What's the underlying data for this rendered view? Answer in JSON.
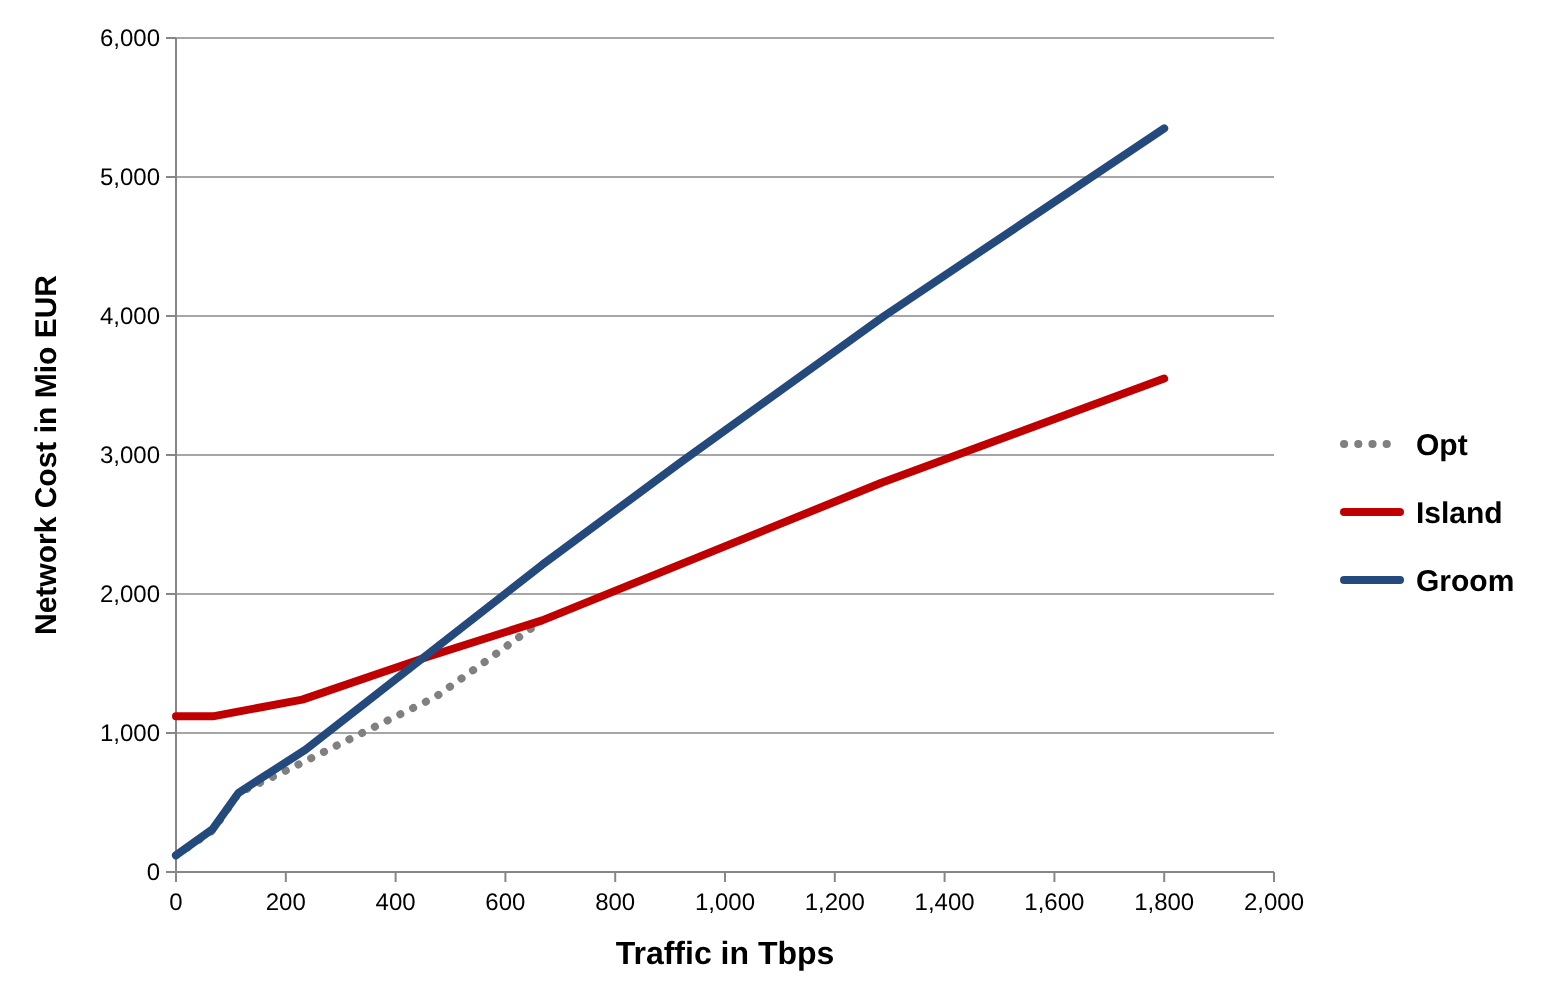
{
  "chart_data": {
    "type": "line",
    "xlabel": "Traffic in Tbps",
    "ylabel": "Network Cost in Mio EUR",
    "xlim": [
      0,
      2000
    ],
    "ylim": [
      0,
      6000
    ],
    "xticks": [
      0,
      200,
      400,
      600,
      800,
      {
        "value": 1000,
        "label": "1,000"
      },
      {
        "value": 1200,
        "label": "1,200"
      },
      {
        "value": 1400,
        "label": "1,400"
      },
      {
        "value": 1600,
        "label": "1,600"
      },
      {
        "value": 1800,
        "label": "1,800"
      },
      {
        "value": 2000,
        "label": "2,000"
      }
    ],
    "yticks": [
      0,
      {
        "value": 1000,
        "label": "1,000"
      },
      {
        "value": 2000,
        "label": "2,000"
      },
      {
        "value": 3000,
        "label": "3,000"
      },
      {
        "value": 4000,
        "label": "4,000"
      },
      {
        "value": 5000,
        "label": "5,000"
      },
      {
        "value": 6000,
        "label": "6,000"
      }
    ],
    "grid": "y",
    "legend": "right",
    "series": [
      {
        "name": "Opt",
        "color": "#808080",
        "line_style": "dotted",
        "x": [
          0,
          67,
          114,
          206,
          339,
          473,
          569,
          660
        ],
        "values": [
          120,
          300,
          570,
          740,
          1000,
          1260,
          1530,
          1790
        ]
      },
      {
        "name": "Island",
        "color": "#c00000",
        "line_style": "solid",
        "x": [
          0,
          67,
          230,
          460,
          667,
          1285,
          1800
        ],
        "values": [
          1120,
          1120,
          1240,
          1550,
          1810,
          2800,
          3550
        ]
      },
      {
        "name": "Groom",
        "color": "#24497c",
        "line_style": "solid",
        "x": [
          0,
          67,
          114,
          236,
          667,
          920,
          1290,
          1800
        ],
        "values": [
          120,
          310,
          570,
          880,
          2210,
          2950,
          4000,
          5350
        ]
      }
    ]
  }
}
